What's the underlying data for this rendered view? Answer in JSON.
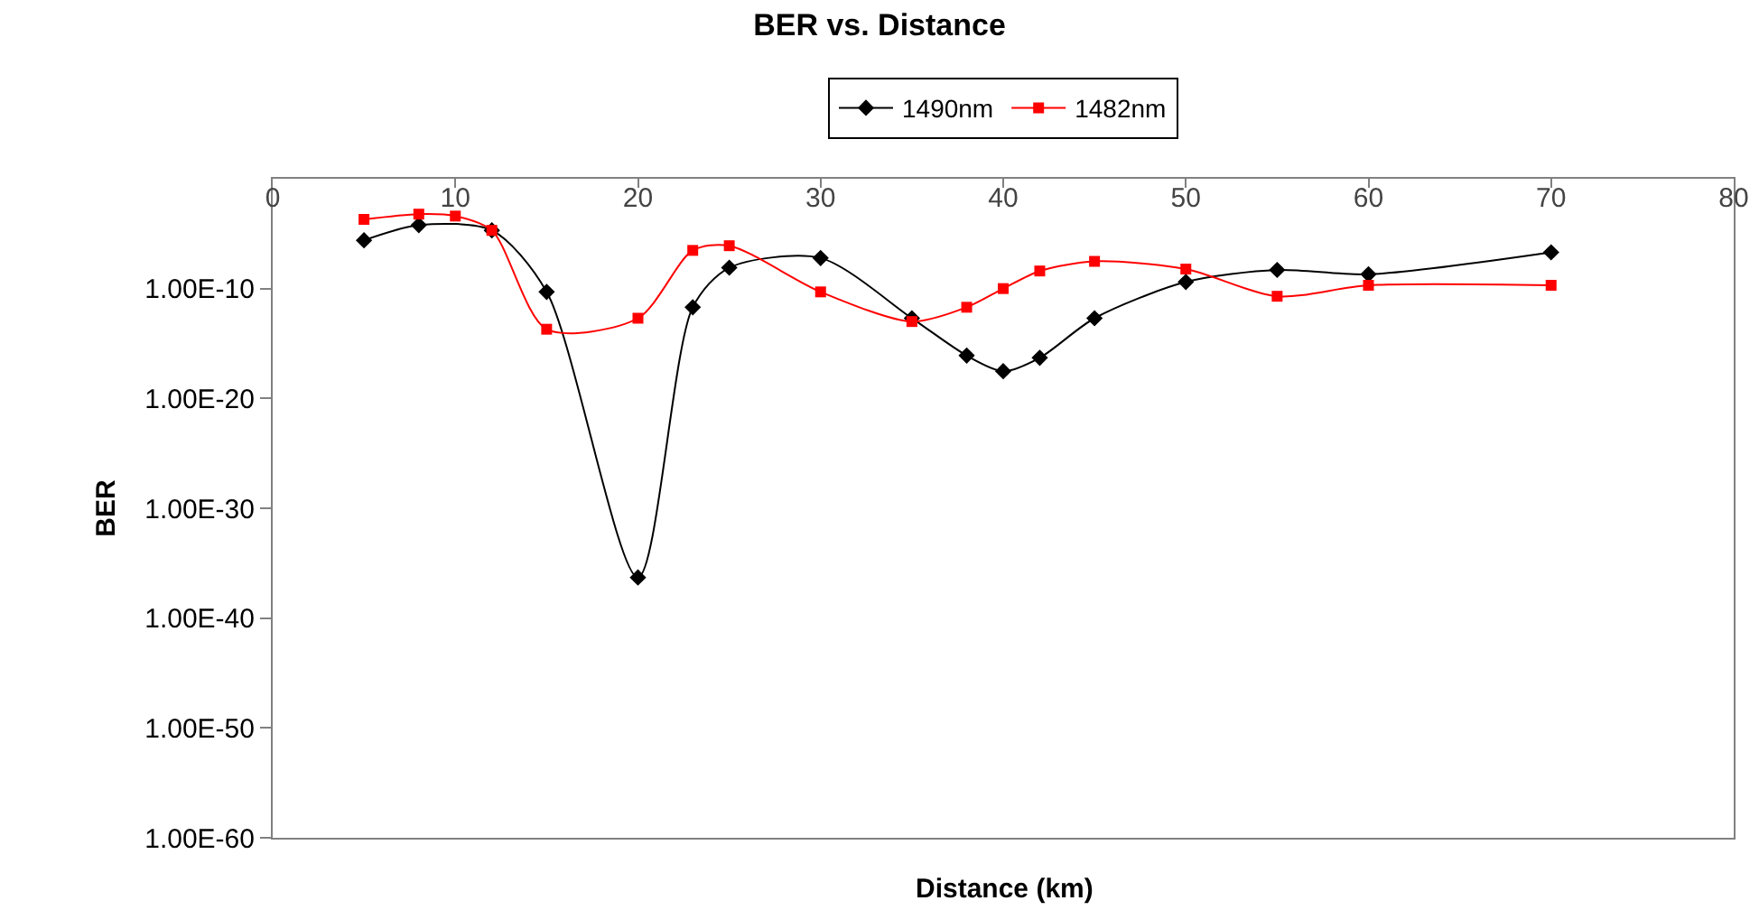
{
  "chart_data": {
    "type": "line",
    "title": "BER vs. Distance",
    "xlabel": "Distance (km)",
    "ylabel": "BER",
    "log": "y",
    "grid": false,
    "legend": "top",
    "line_style": "solid",
    "xlim": [
      0,
      80
    ],
    "xticks": [
      0,
      10,
      20,
      30,
      40,
      50,
      60,
      70,
      80
    ],
    "ylim": [
      1e-60,
      1
    ],
    "yticks": [
      {
        "value": 1e-10,
        "label": "1.00E-10"
      },
      {
        "value": 1e-20,
        "label": "1.00E-20"
      },
      {
        "value": 1e-30,
        "label": "1.00E-30"
      },
      {
        "value": 1e-40,
        "label": "1.00E-40"
      },
      {
        "value": 1e-50,
        "label": "1.00E-50"
      },
      {
        "value": 1e-60,
        "label": "1.00E-60"
      }
    ],
    "series": [
      {
        "name": "1490nm",
        "color": "#000000",
        "marker": "diamond",
        "x": [
          5,
          8,
          12,
          15,
          20,
          23,
          25,
          30,
          35,
          38,
          40,
          42,
          45,
          50,
          55,
          60,
          70
        ],
        "values": [
          2.5e-06,
          6e-05,
          2e-05,
          5e-11,
          5e-37,
          2e-12,
          8e-09,
          6e-08,
          2e-13,
          8e-17,
          3e-18,
          5e-17,
          2e-13,
          4e-10,
          5e-09,
          2e-09,
          2e-07
        ]
      },
      {
        "name": "1482nm",
        "color": "#ff0000",
        "marker": "square",
        "x": [
          5,
          8,
          10,
          12,
          15,
          20,
          23,
          25,
          30,
          35,
          38,
          40,
          42,
          45,
          50,
          55,
          60,
          70
        ],
        "values": [
          0.0002,
          0.0006,
          0.0004,
          2e-05,
          2e-14,
          2e-13,
          3e-07,
          8e-07,
          5e-11,
          1e-13,
          2e-12,
          1e-10,
          4e-09,
          3e-08,
          6e-09,
          2e-11,
          2e-10,
          2e-10
        ]
      }
    ]
  }
}
